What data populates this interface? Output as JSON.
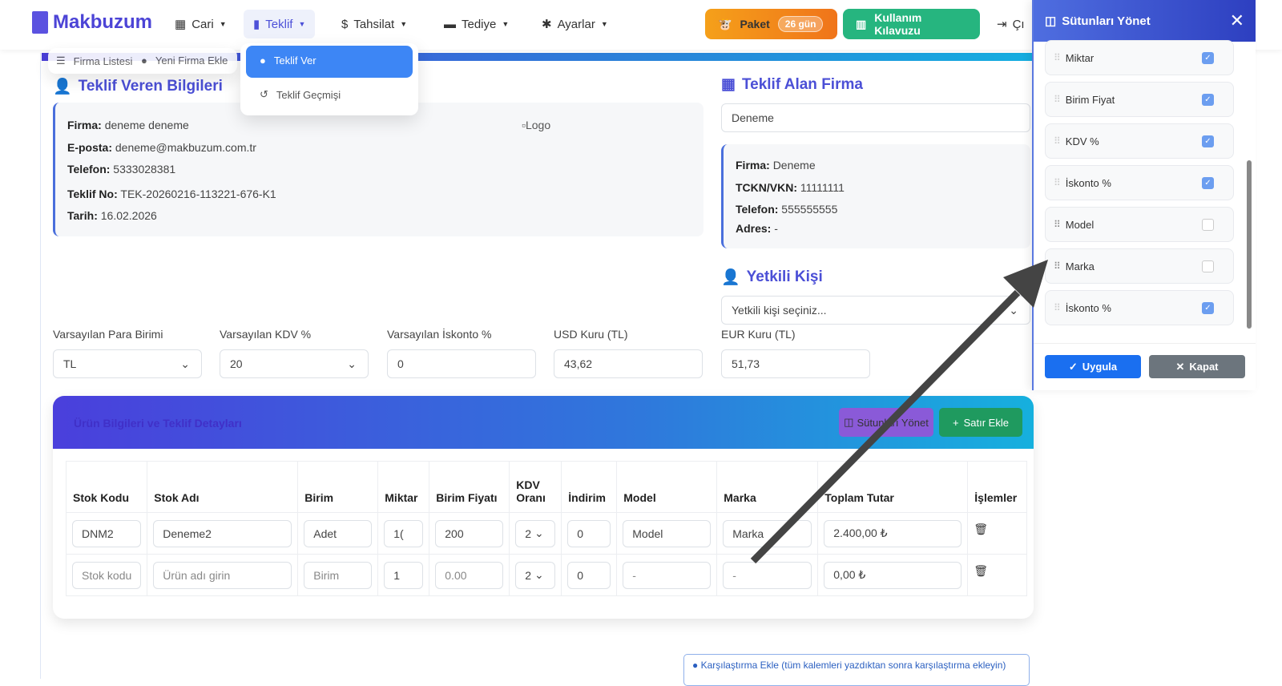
{
  "nav": {
    "brand": "Makbuzum",
    "items": [
      {
        "label": "Cari",
        "icon": "building-icon"
      },
      {
        "label": "Teklif",
        "icon": "file-icon"
      },
      {
        "label": "Tahsilat",
        "icon": "hand-money-icon"
      },
      {
        "label": "Tediye",
        "icon": "card-icon"
      },
      {
        "label": "Ayarlar",
        "icon": "gear-icon"
      }
    ],
    "package_label": "Paket",
    "package_days": "26 gün",
    "guide_label": "Kullanım Kılavuzu",
    "logout_label": "Çı"
  },
  "dropdown_cari": {
    "items": [
      "Firma Listesi",
      "Yeni Firma Ekle"
    ]
  },
  "dropdown_teklif": {
    "items": [
      "Teklif Ver",
      "Teklif Geçmişi"
    ]
  },
  "sender": {
    "title": "Teklif Veren Bilgileri",
    "firma_label": "Firma:",
    "firma": "deneme deneme",
    "eposta_label": "E-posta:",
    "eposta": "deneme@makbuzum.com.tr",
    "telefon_label": "Telefon:",
    "telefon": "5333028381",
    "teklif_no_label": "Teklif No:",
    "teklif_no": "TEK-20260216-113221-676-K1",
    "tarih_label": "Tarih:",
    "tarih": "16.02.2026",
    "logo_alt": "Logo"
  },
  "receiver": {
    "title": "Teklif Alan Firma",
    "selected": "Deneme",
    "firma_label": "Firma:",
    "firma": "Deneme",
    "tckn_label": "TCKN/VKN:",
    "tckn": "11111111",
    "telefon_label": "Telefon:",
    "telefon": "555555555",
    "adres_label": "Adres:",
    "adres": "-"
  },
  "contact": {
    "title": "Yetkili Kişi",
    "placeholder": "Yetkili kişi seçiniz..."
  },
  "defaults": {
    "currency_label": "Varsayılan Para Birimi",
    "currency": "TL",
    "kdv_label": "Varsayılan KDV %",
    "kdv": "20",
    "discount_label": "Varsayılan İskonto %",
    "discount": "0",
    "usd_label": "USD Kuru (TL)",
    "usd": "43,62",
    "eur_label": "EUR Kuru (TL)",
    "eur": "51,73"
  },
  "items_section": {
    "title": "Ürün Bilgileri ve Teklif Detayları",
    "manage_columns": "Sütunları Yönet",
    "add_row": "Satır Ekle",
    "columns": [
      "Stok Kodu",
      "Stok Adı",
      "Birim",
      "Miktar",
      "Birim Fiyatı",
      "KDV Oranı",
      "İndirim",
      "Model",
      "Marka",
      "Toplam Tutar",
      "İşlemler"
    ],
    "rows": [
      {
        "stok_kodu": "DNM2",
        "stok_adi": "Deneme2",
        "birim": "Adet",
        "miktar": "1(",
        "birim_fiyati": "200",
        "kdv": "2",
        "indirim": "0",
        "model": "Model",
        "marka": "Marka",
        "toplam": "2.400,00 ₺"
      },
      {
        "stok_kodu": "Stok kodu",
        "stok_adi": "Ürün adı girin",
        "birim": "Birim",
        "miktar": "1",
        "birim_fiyati": "0.00",
        "kdv": "2",
        "indirim": "0",
        "model": "-",
        "marka": "-",
        "toplam": "0,00 ₺"
      }
    ]
  },
  "compare_note": "Karşılaştırma Ekle (tüm kalemleri yazdıktan sonra karşılaştırma ekleyin)",
  "panel": {
    "title": "Sütunları Yönet",
    "columns": [
      {
        "label": "Miktar",
        "checked": true
      },
      {
        "label": "Birim Fiyat",
        "checked": true
      },
      {
        "label": "KDV %",
        "checked": true
      },
      {
        "label": "İskonto %",
        "checked": true
      },
      {
        "label": "Model",
        "checked": false
      },
      {
        "label": "Marka",
        "checked": false
      },
      {
        "label": "İskonto %",
        "checked": true
      }
    ],
    "apply": "Uygula",
    "close": "Kapat"
  },
  "colors": {
    "primary": "#4b4fd6",
    "orange": "#f28a12",
    "green": "#22b07a",
    "apply": "#1a6ff0",
    "close": "#6c757d"
  }
}
